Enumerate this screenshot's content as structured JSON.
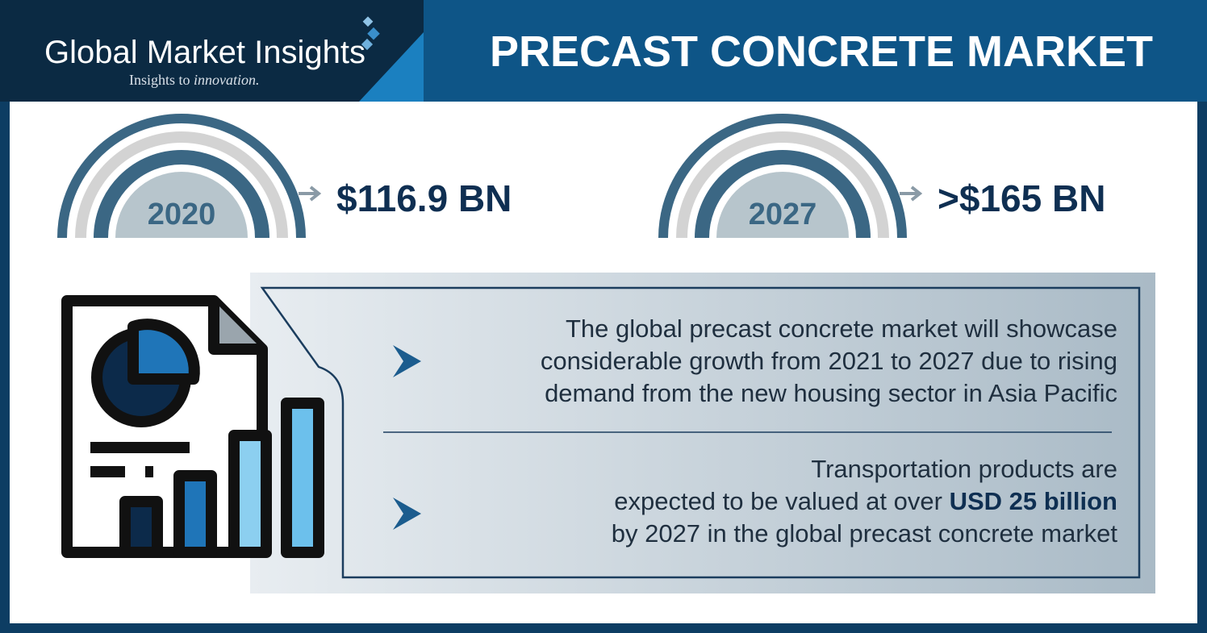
{
  "header": {
    "logo_name": "Global Market Insights",
    "logo_tagline": "Insights to ",
    "logo_tagline_italic": "innovation.",
    "title": "PRECAST CONCRETE MARKET"
  },
  "stats": [
    {
      "year": "2020",
      "value": "$116.9 BN"
    },
    {
      "year": "2027",
      "value": ">$165 BN"
    }
  ],
  "points": [
    {
      "lines": [
        "The global precast concrete market will showcase",
        "considerable growth from 2021 to 2027 due to rising",
        "demand from the new housing sector in Asia Pacific"
      ]
    },
    {
      "lines": [
        "Transportation products are",
        "expected to be valued at over ",
        "by 2027 in the global precast concrete market"
      ],
      "highlight": "USD 25 billion"
    }
  ]
}
